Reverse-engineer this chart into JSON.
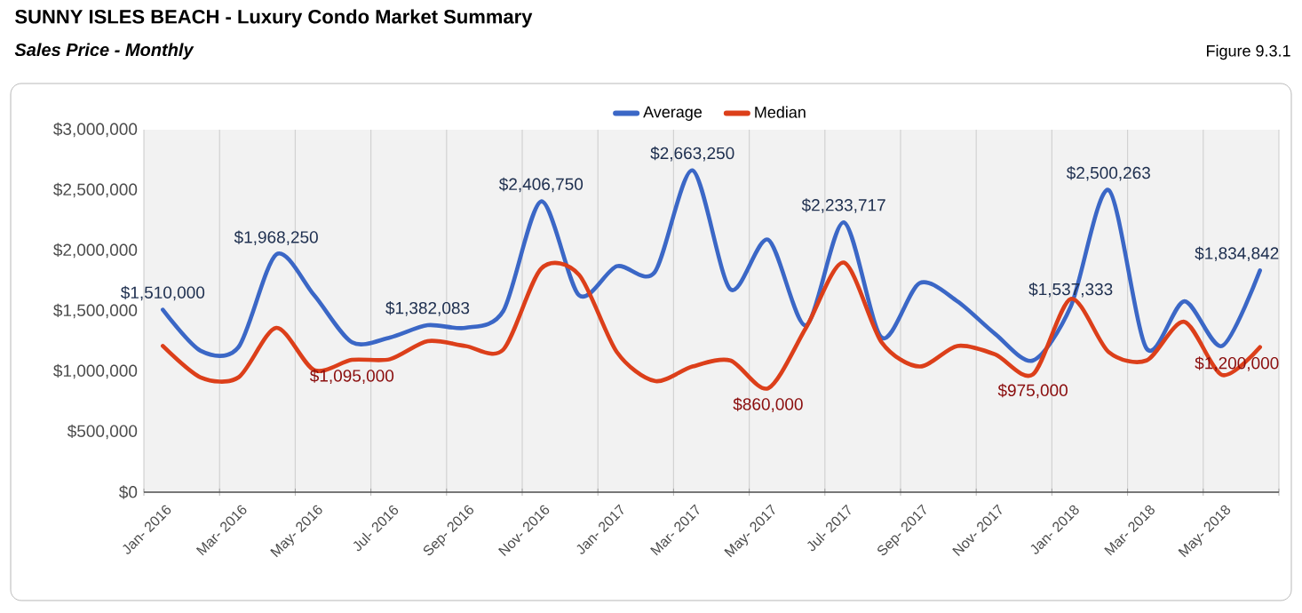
{
  "chart_data": {
    "type": "line",
    "title": "SUNNY ISLES BEACH - Luxury Condo Market Summary",
    "subtitle": "Sales Price - Monthly",
    "annotations": [
      "Figure 9.3.1"
    ],
    "categories": [
      "Jan- 2016",
      null,
      "Mar- 2016",
      null,
      "May- 2016",
      null,
      "Jul- 2016",
      null,
      "Sep- 2016",
      null,
      "Nov- 2016",
      null,
      "Jan- 2017",
      null,
      "Mar- 2017",
      null,
      "May- 2017",
      null,
      "Jul- 2017",
      null,
      "Sep- 2017",
      null,
      "Nov- 2017",
      null,
      "Jan- 2018",
      null,
      "Mar- 2018",
      null,
      "May- 2018",
      null
    ],
    "series": [
      {
        "name": "Average",
        "color": "#3b67c6",
        "values": [
          1510000,
          1170000,
          1200000,
          1968250,
          1630000,
          1240000,
          1280000,
          1382083,
          1360000,
          1500000,
          2406750,
          1630000,
          1870000,
          1820000,
          2663250,
          1680000,
          2090000,
          1380000,
          2233717,
          1280000,
          1730000,
          1580000,
          1310000,
          1090000,
          1537333,
          2500263,
          1190000,
          1580000,
          1210000,
          1834842
        ],
        "value_labels": [
          "$1,510,000",
          null,
          null,
          "$1,968,250",
          null,
          null,
          null,
          "$1,382,083",
          null,
          null,
          "$2,406,750",
          null,
          null,
          null,
          "$2,663,250",
          null,
          null,
          null,
          "$2,233,717",
          null,
          null,
          null,
          null,
          null,
          "$1,537,333",
          "$2,500,263",
          null,
          null,
          null,
          "$1,834,842"
        ]
      },
      {
        "name": "Median",
        "color": "#dc3f1a",
        "values": [
          1210000,
          950000,
          950000,
          1360000,
          1010000,
          1095000,
          1100000,
          1250000,
          1210000,
          1180000,
          1850000,
          1800000,
          1160000,
          920000,
          1040000,
          1090000,
          860000,
          1360000,
          1900000,
          1240000,
          1040000,
          1210000,
          1140000,
          975000,
          1600000,
          1160000,
          1090000,
          1410000,
          970000,
          1200000
        ],
        "value_labels": [
          null,
          null,
          null,
          null,
          null,
          "$1,095,000",
          null,
          null,
          null,
          null,
          null,
          null,
          null,
          null,
          null,
          null,
          "$860,000",
          null,
          null,
          null,
          null,
          null,
          null,
          "$975,000",
          null,
          null,
          null,
          null,
          null,
          "$1,200,000"
        ]
      }
    ],
    "ylim": [
      0,
      3000000
    ],
    "yticks": [
      {
        "value": 0,
        "label": "$0"
      },
      {
        "value": 500000,
        "label": "$500,000"
      },
      {
        "value": 1000000,
        "label": "$1,000,000"
      },
      {
        "value": 1500000,
        "label": "$1,500,000"
      },
      {
        "value": 2000000,
        "label": "$2,000,000"
      },
      {
        "value": 2500000,
        "label": "$2,500,000"
      },
      {
        "value": 3000000,
        "label": "$3,000,000"
      }
    ],
    "grid": "x",
    "legend": "top"
  }
}
